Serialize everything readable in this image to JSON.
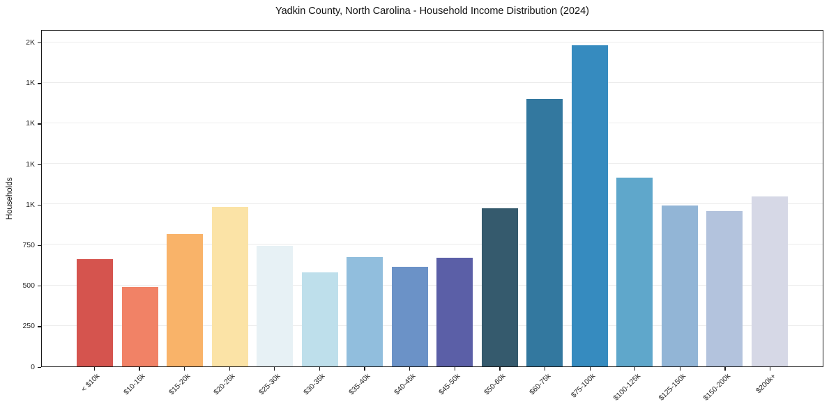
{
  "chart_data": {
    "type": "bar",
    "title": "Yadkin County, North Carolina - Household Income Distribution (2024)",
    "xlabel": "",
    "ylabel": "Households",
    "categories": [
      "< $10k",
      "$10-15k",
      "$15-20k",
      "$20-25k",
      "$25-30k",
      "$30-35k",
      "$35-40k",
      "$40-45k",
      "$45-50k",
      "$50-60k",
      "$60-75k",
      "$75-100k",
      "$100-125k",
      "$125-150k",
      "$150-200k",
      "$200k+"
    ],
    "values": [
      660,
      490,
      815,
      985,
      745,
      580,
      675,
      615,
      670,
      975,
      1650,
      1980,
      1165,
      995,
      960,
      1050
    ],
    "bar_colors": [
      "#d5544e",
      "#f18266",
      "#f9b369",
      "#fbe3a6",
      "#e7f1f5",
      "#bedfeb",
      "#91bedd",
      "#6b92c7",
      "#5b5fa7",
      "#355a6d",
      "#33789f",
      "#368bbf",
      "#5fa7cb",
      "#92b5d6",
      "#b3c3dd",
      "#d6d8e6"
    ],
    "ylim": [
      0,
      2080
    ],
    "yticks": [
      {
        "value": 0,
        "label": "0"
      },
      {
        "value": 250,
        "label": "250"
      },
      {
        "value": 500,
        "label": "500"
      },
      {
        "value": 750,
        "label": "750"
      },
      {
        "value": 1000,
        "label": "1K"
      },
      {
        "value": 1250,
        "label": "1K"
      },
      {
        "value": 1500,
        "label": "1K"
      },
      {
        "value": 1750,
        "label": "1K"
      },
      {
        "value": 2000,
        "label": "2K"
      }
    ],
    "grid": {
      "horizontal": true,
      "color": "#ececec"
    },
    "legend_position": "none",
    "colors": {
      "axis": "#1a1a1a",
      "tick_label": "#262626",
      "title": "#111111",
      "background": "#ffffff"
    }
  }
}
